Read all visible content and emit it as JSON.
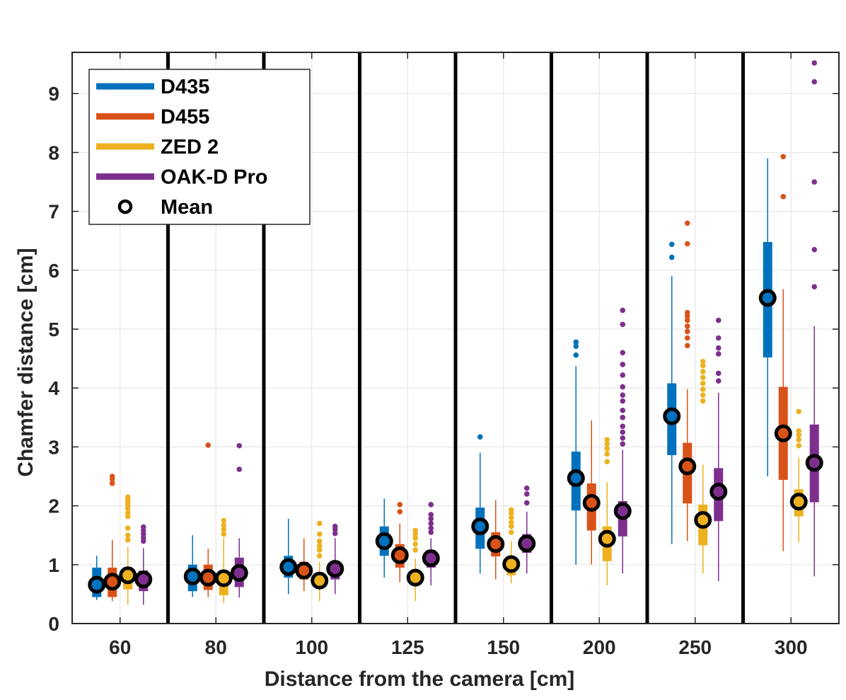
{
  "chart_data": {
    "type": "box",
    "title": "",
    "xlabel": "Distance from the camera [cm]",
    "ylabel": "Chamfer distance [cm]",
    "ylim": [
      0,
      9.7
    ],
    "yticks": [
      "0",
      "1",
      "2",
      "3",
      "4",
      "5",
      "6",
      "7",
      "8",
      "9"
    ],
    "categories": [
      "60",
      "80",
      "100",
      "125",
      "150",
      "200",
      "250",
      "300"
    ],
    "grid": true,
    "legend_position": "top-left",
    "legend": [
      "D435",
      "D455",
      "ZED 2",
      "OAK-D Pro",
      "Mean"
    ],
    "series": [
      {
        "name": "D435",
        "color": "#0072BD",
        "boxes": [
          {
            "whisker_low": 0.4,
            "q1": 0.45,
            "median": 0.6,
            "q3": 0.95,
            "whisker_high": 1.15,
            "mean": 0.66,
            "outliers": []
          },
          {
            "whisker_low": 0.45,
            "q1": 0.55,
            "median": 0.75,
            "q3": 1.0,
            "whisker_high": 1.5,
            "mean": 0.8,
            "outliers": []
          },
          {
            "whisker_low": 0.5,
            "q1": 0.78,
            "median": 0.92,
            "q3": 1.15,
            "whisker_high": 1.78,
            "mean": 0.96,
            "outliers": []
          },
          {
            "whisker_low": 0.78,
            "q1": 1.15,
            "median": 1.35,
            "q3": 1.65,
            "whisker_high": 2.12,
            "mean": 1.4,
            "outliers": []
          },
          {
            "whisker_low": 0.85,
            "q1": 1.27,
            "median": 1.6,
            "q3": 1.97,
            "whisker_high": 2.9,
            "mean": 1.65,
            "outliers": [
              3.17
            ]
          },
          {
            "whisker_low": 1.0,
            "q1": 1.92,
            "median": 2.4,
            "q3": 2.92,
            "whisker_high": 4.37,
            "mean": 2.47,
            "outliers": [
              4.56,
              4.71,
              4.78
            ]
          },
          {
            "whisker_low": 1.35,
            "q1": 2.86,
            "median": 3.4,
            "q3": 4.08,
            "whisker_high": 5.9,
            "mean": 3.52,
            "outliers": [
              6.22,
              6.44
            ]
          },
          {
            "whisker_low": 2.5,
            "q1": 4.52,
            "median": 5.55,
            "q3": 6.48,
            "whisker_high": 7.9,
            "mean": 5.53,
            "outliers": []
          }
        ]
      },
      {
        "name": "D455",
        "color": "#D95319",
        "boxes": [
          {
            "whisker_low": 0.38,
            "q1": 0.45,
            "median": 0.65,
            "q3": 0.95,
            "whisker_high": 1.42,
            "mean": 0.71,
            "outliers": [
              2.38,
              2.45,
              2.5
            ]
          },
          {
            "whisker_low": 0.45,
            "q1": 0.57,
            "median": 0.75,
            "q3": 1.0,
            "whisker_high": 1.27,
            "mean": 0.78,
            "outliers": [
              3.03
            ]
          },
          {
            "whisker_low": 0.55,
            "q1": 0.75,
            "median": 0.9,
            "q3": 1.05,
            "whisker_high": 1.45,
            "mean": 0.9,
            "outliers": []
          },
          {
            "whisker_low": 0.7,
            "q1": 0.95,
            "median": 1.12,
            "q3": 1.35,
            "whisker_high": 1.7,
            "mean": 1.16,
            "outliers": [
              1.9,
              2.02
            ]
          },
          {
            "whisker_low": 0.75,
            "q1": 1.14,
            "median": 1.32,
            "q3": 1.55,
            "whisker_high": 2.1,
            "mean": 1.35,
            "outliers": []
          },
          {
            "whisker_low": 1.0,
            "q1": 1.58,
            "median": 2.0,
            "q3": 2.38,
            "whisker_high": 3.45,
            "mean": 2.05,
            "outliers": []
          },
          {
            "whisker_low": 1.4,
            "q1": 2.04,
            "median": 2.6,
            "q3": 3.07,
            "whisker_high": 3.98,
            "mean": 2.67,
            "outliers": [
              4.72,
              4.85,
              4.96,
              5.05,
              5.15,
              5.22,
              5.28,
              6.45,
              6.8
            ]
          },
          {
            "whisker_low": 1.23,
            "q1": 2.44,
            "median": 3.1,
            "q3": 4.02,
            "whisker_high": 5.68,
            "mean": 3.23,
            "outliers": [
              7.25,
              7.93
            ]
          }
        ]
      },
      {
        "name": "ZED 2",
        "color": "#EDB120",
        "boxes": [
          {
            "whisker_low": 0.32,
            "q1": 0.58,
            "median": 0.78,
            "q3": 0.92,
            "whisker_high": 1.3,
            "mean": 0.82,
            "outliers": [
              1.42,
              1.5,
              1.62,
              1.82,
              1.88,
              1.95,
              2.0,
              2.05,
              2.1,
              2.15
            ]
          },
          {
            "whisker_low": 0.35,
            "q1": 0.48,
            "median": 0.7,
            "q3": 0.85,
            "whisker_high": 1.45,
            "mean": 0.77,
            "outliers": [
              1.52,
              1.6,
              1.67,
              1.75
            ]
          },
          {
            "whisker_low": 0.38,
            "q1": 0.62,
            "median": 0.72,
            "q3": 0.85,
            "whisker_high": 1.05,
            "mean": 0.73,
            "outliers": [
              1.15,
              1.25,
              1.32,
              1.4,
              1.52,
              1.7
            ]
          },
          {
            "whisker_low": 0.38,
            "q1": 0.68,
            "median": 0.76,
            "q3": 0.88,
            "whisker_high": 1.1,
            "mean": 0.78,
            "outliers": [
              1.25,
              1.35,
              1.45,
              1.52,
              1.58
            ]
          },
          {
            "whisker_low": 0.68,
            "q1": 0.82,
            "median": 0.98,
            "q3": 1.12,
            "whisker_high": 1.4,
            "mean": 1.01,
            "outliers": [
              1.55,
              1.65,
              1.72,
              1.8,
              1.87,
              1.93
            ]
          },
          {
            "whisker_low": 0.65,
            "q1": 1.06,
            "median": 1.38,
            "q3": 1.65,
            "whisker_high": 2.4,
            "mean": 1.44,
            "outliers": [
              2.75,
              2.88,
              2.97,
              3.05,
              3.12
            ]
          },
          {
            "whisker_low": 0.85,
            "q1": 1.33,
            "median": 1.7,
            "q3": 2.02,
            "whisker_high": 2.7,
            "mean": 1.76,
            "outliers": [
              3.78,
              3.88,
              3.98,
              4.08,
              4.18,
              4.28,
              4.38,
              4.45
            ]
          },
          {
            "whisker_low": 1.38,
            "q1": 1.82,
            "median": 2.05,
            "q3": 2.28,
            "whisker_high": 2.82,
            "mean": 2.07,
            "outliers": [
              3.02,
              3.12,
              3.2,
              3.27,
              3.6
            ]
          }
        ]
      },
      {
        "name": "OAK-D Pro",
        "color": "#7E2F8E",
        "boxes": [
          {
            "whisker_low": 0.32,
            "q1": 0.55,
            "median": 0.72,
            "q3": 0.9,
            "whisker_high": 1.28,
            "mean": 0.75,
            "outliers": [
              1.4,
              1.46,
              1.52,
              1.58,
              1.64
            ]
          },
          {
            "whisker_low": 0.44,
            "q1": 0.62,
            "median": 0.8,
            "q3": 1.12,
            "whisker_high": 1.45,
            "mean": 0.86,
            "outliers": [
              2.62,
              3.02
            ]
          },
          {
            "whisker_low": 0.5,
            "q1": 0.75,
            "median": 0.9,
            "q3": 1.05,
            "whisker_high": 1.45,
            "mean": 0.93,
            "outliers": [
              1.53,
              1.6,
              1.65
            ]
          },
          {
            "whisker_low": 0.65,
            "q1": 0.95,
            "median": 1.08,
            "q3": 1.25,
            "whisker_high": 1.45,
            "mean": 1.11,
            "outliers": [
              1.55,
              1.62,
              1.7,
              1.78,
              1.85,
              2.02
            ]
          },
          {
            "whisker_low": 0.85,
            "q1": 1.2,
            "median": 1.35,
            "q3": 1.52,
            "whisker_high": 1.9,
            "mean": 1.36,
            "outliers": [
              2.05,
              2.2,
              2.3
            ]
          },
          {
            "whisker_low": 0.85,
            "q1": 1.48,
            "median": 1.85,
            "q3": 2.08,
            "whisker_high": 2.95,
            "mean": 1.91,
            "outliers": [
              3.05,
              3.15,
              3.25,
              3.35,
              3.5,
              3.62,
              3.78,
              3.88,
              4.02,
              4.22,
              4.4,
              4.6,
              5.08,
              5.32
            ]
          },
          {
            "whisker_low": 0.72,
            "q1": 1.74,
            "median": 2.2,
            "q3": 2.64,
            "whisker_high": 3.92,
            "mean": 2.24,
            "outliers": [
              4.12,
              4.25,
              4.58,
              4.68,
              4.85,
              5.15
            ]
          },
          {
            "whisker_low": 0.8,
            "q1": 2.06,
            "median": 2.7,
            "q3": 3.38,
            "whisker_high": 5.05,
            "mean": 2.73,
            "outliers": [
              5.72,
              6.35,
              7.5,
              9.2,
              9.52
            ]
          }
        ]
      }
    ]
  }
}
